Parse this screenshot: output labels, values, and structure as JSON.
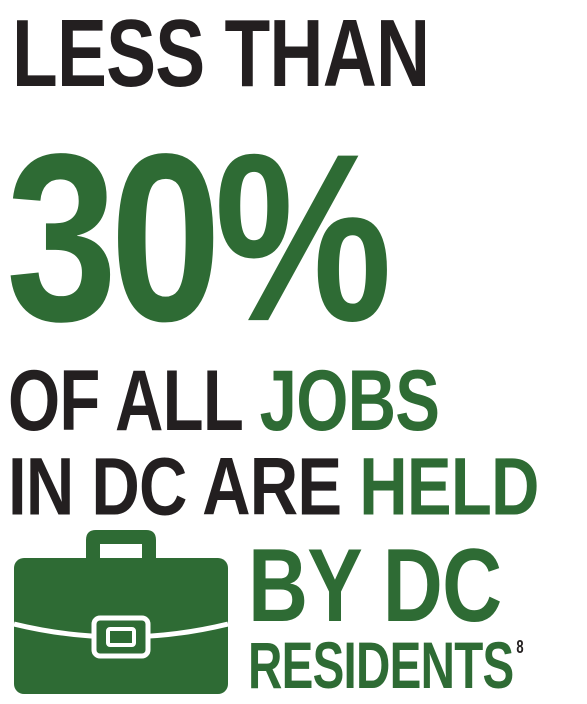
{
  "headline": {
    "line1": "LESS THAN",
    "big_stat": "30%",
    "line3_black": "OF ALL",
    "line3_green": "JOBS",
    "line4_black": "IN DC ARE",
    "line4_green": "HELD",
    "line5": "BY DC",
    "line6": "RESIDENTS",
    "footnote": "8"
  },
  "icons": {
    "briefcase": "briefcase-icon"
  },
  "colors": {
    "black": "#231f20",
    "green": "#2e6b34",
    "background": "#ffffff"
  }
}
